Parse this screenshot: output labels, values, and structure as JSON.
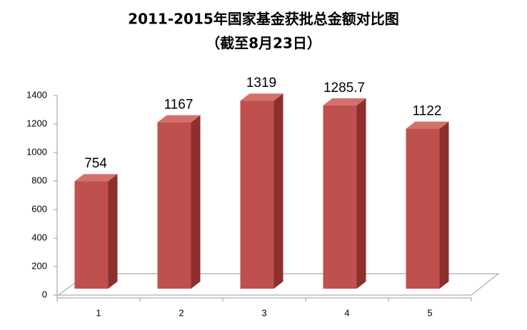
{
  "chart_data": {
    "type": "bar3d",
    "title": "2011-2015年国家基金获批总金额对比图",
    "subtitle": "（截至8月23日）",
    "categories": [
      "1",
      "2",
      "3",
      "4",
      "5"
    ],
    "values": [
      754,
      1167,
      1319,
      1285.7,
      1122
    ],
    "color": "#c0504d",
    "ylim": [
      0,
      1400
    ],
    "yticks": [
      0,
      200,
      400,
      600,
      800,
      1000,
      1200,
      1400
    ],
    "grid": false
  }
}
